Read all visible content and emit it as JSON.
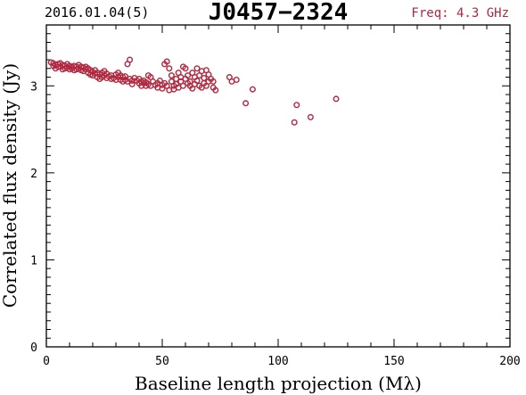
{
  "header": {
    "date": "2016.01.04(5)",
    "source": "J0457−2324",
    "freq": "Freq: 4.3 GHz"
  },
  "colors": {
    "points": "#b0283f",
    "freq_text": "#b0283f",
    "axes": "#000000"
  },
  "chart_data": {
    "type": "scatter",
    "title": "J0457−2324",
    "xlabel": "Baseline length projection (Mλ)",
    "ylabel": "Correlated flux density (Jy)",
    "xlim": [
      0,
      200
    ],
    "ylim": [
      0,
      3.7
    ],
    "xticks": [
      0,
      50,
      100,
      150,
      200
    ],
    "xtick_labels": [
      "0",
      "50",
      "100",
      "150",
      "200"
    ],
    "yticks": [
      0,
      1,
      2,
      3
    ],
    "ytick_labels": [
      "0",
      "1",
      "2",
      "3"
    ],
    "grid": false,
    "marker": "open-circle",
    "points": [
      [
        2,
        3.27
      ],
      [
        3,
        3.23
      ],
      [
        3,
        3.26
      ],
      [
        4,
        3.24
      ],
      [
        4,
        3.2
      ],
      [
        5,
        3.25
      ],
      [
        5,
        3.22
      ],
      [
        6,
        3.26
      ],
      [
        6,
        3.22
      ],
      [
        7,
        3.24
      ],
      [
        7,
        3.19
      ],
      [
        8,
        3.23
      ],
      [
        8,
        3.2
      ],
      [
        9,
        3.25
      ],
      [
        9,
        3.21
      ],
      [
        10,
        3.23
      ],
      [
        10,
        3.19
      ],
      [
        11,
        3.22
      ],
      [
        11,
        3.2
      ],
      [
        12,
        3.23
      ],
      [
        12,
        3.18
      ],
      [
        13,
        3.22
      ],
      [
        13,
        3.19
      ],
      [
        14,
        3.24
      ],
      [
        14,
        3.2
      ],
      [
        15,
        3.22
      ],
      [
        15,
        3.18
      ],
      [
        16,
        3.21
      ],
      [
        16,
        3.17
      ],
      [
        17,
        3.22
      ],
      [
        17,
        3.19
      ],
      [
        18,
        3.2
      ],
      [
        18,
        3.15
      ],
      [
        19,
        3.18
      ],
      [
        19,
        3.13
      ],
      [
        20,
        3.16
      ],
      [
        20,
        3.12
      ],
      [
        21,
        3.14
      ],
      [
        21,
        3.18
      ],
      [
        22,
        3.15
      ],
      [
        22,
        3.1
      ],
      [
        23,
        3.13
      ],
      [
        23,
        3.08
      ],
      [
        24,
        3.15
      ],
      [
        24,
        3.1
      ],
      [
        25,
        3.12
      ],
      [
        25,
        3.17
      ],
      [
        26,
        3.09
      ],
      [
        26,
        3.14
      ],
      [
        27,
        3.11
      ],
      [
        28,
        3.08
      ],
      [
        28,
        3.12
      ],
      [
        29,
        3.09
      ],
      [
        30,
        3.13
      ],
      [
        30,
        3.07
      ],
      [
        31,
        3.15
      ],
      [
        31,
        3.1
      ],
      [
        32,
        3.12
      ],
      [
        32,
        3.07
      ],
      [
        33,
        3.1
      ],
      [
        33,
        3.05
      ],
      [
        34,
        3.07
      ],
      [
        34,
        3.11
      ],
      [
        35,
        3.05
      ],
      [
        35,
        3.25
      ],
      [
        36,
        3.3
      ],
      [
        36,
        3.08
      ],
      [
        37,
        3.06
      ],
      [
        37,
        3.02
      ],
      [
        38,
        3.09
      ],
      [
        39,
        3.06
      ],
      [
        40,
        3.03
      ],
      [
        40,
        3.08
      ],
      [
        41,
        3.05
      ],
      [
        41,
        3.0
      ],
      [
        42,
        3.03
      ],
      [
        42,
        3.06
      ],
      [
        43,
        3.0
      ],
      [
        43,
        3.04
      ],
      [
        44,
        3.12
      ],
      [
        44,
        3.02
      ],
      [
        45,
        3.0
      ],
      [
        45,
        3.1
      ],
      [
        46,
        3.05
      ],
      [
        47,
        3.01
      ],
      [
        48,
        3.03
      ],
      [
        48,
        2.98
      ],
      [
        49,
        3.06
      ],
      [
        50,
        3.01
      ],
      [
        50,
        2.97
      ],
      [
        51,
        3.25
      ],
      [
        51,
        3.03
      ],
      [
        52,
        3.28
      ],
      [
        52,
        3.0
      ],
      [
        53,
        3.2
      ],
      [
        53,
        2.95
      ],
      [
        54,
        3.05
      ],
      [
        54,
        3.12
      ],
      [
        55,
        3.0
      ],
      [
        55,
        2.96
      ],
      [
        56,
        3.08
      ],
      [
        56,
        3.02
      ],
      [
        57,
        3.15
      ],
      [
        57,
        2.98
      ],
      [
        58,
        3.1
      ],
      [
        58,
        3.05
      ],
      [
        59,
        3.22
      ],
      [
        59,
        3.0
      ],
      [
        60,
        3.2
      ],
      [
        60,
        3.08
      ],
      [
        61,
        3.03
      ],
      [
        61,
        3.12
      ],
      [
        62,
        3.0
      ],
      [
        62,
        3.05
      ],
      [
        63,
        3.15
      ],
      [
        63,
        2.97
      ],
      [
        64,
        3.1
      ],
      [
        64,
        3.02
      ],
      [
        65,
        3.2
      ],
      [
        65,
        3.06
      ],
      [
        66,
        3.0
      ],
      [
        66,
        3.12
      ],
      [
        67,
        3.17
      ],
      [
        67,
        2.98
      ],
      [
        68,
        3.09
      ],
      [
        68,
        3.03
      ],
      [
        69,
        3.18
      ],
      [
        69,
        3.0
      ],
      [
        70,
        3.13
      ],
      [
        70,
        3.05
      ],
      [
        71,
        3.08
      ],
      [
        72,
        2.98
      ],
      [
        72,
        3.05
      ],
      [
        73,
        2.95
      ],
      [
        79,
        3.1
      ],
      [
        80,
        3.05
      ],
      [
        82,
        3.07
      ],
      [
        86,
        2.8
      ],
      [
        89,
        2.96
      ],
      [
        107,
        2.58
      ],
      [
        108,
        2.78
      ],
      [
        114,
        2.64
      ],
      [
        125,
        2.85
      ]
    ]
  }
}
